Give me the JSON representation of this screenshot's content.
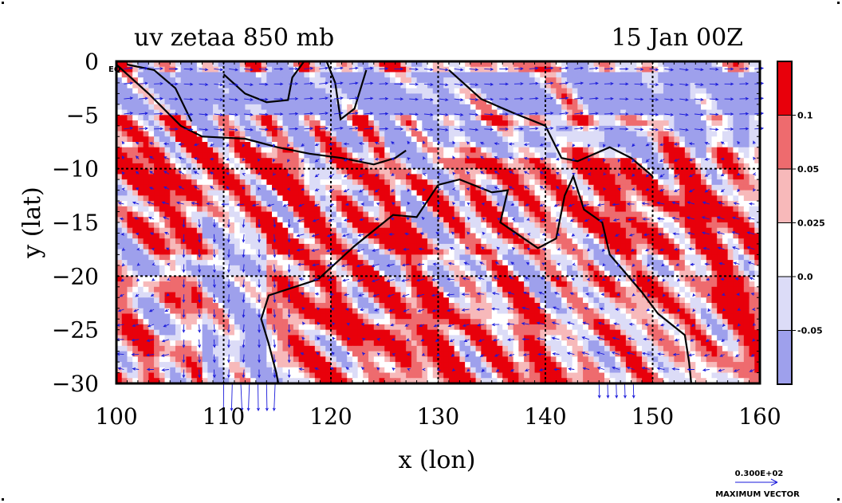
{
  "header": {
    "title_left": "uv zetaa 850 mb",
    "title_right": "15 Jan 00Z"
  },
  "corner_label": "EQ",
  "colorbar": {
    "labels": [
      "0.1",
      "0.05",
      "0.025",
      "0.0",
      "-0.05"
    ],
    "colors": [
      "#e8000b",
      "#ee6b6e",
      "#f7b9ba",
      "#ffffff",
      "#dcdcf7",
      "#9ea0ec"
    ]
  },
  "vector_key": {
    "value": "0.300E+02",
    "label": "MAXIMUM VECTOR"
  },
  "chart_data": {
    "type": "heatmap",
    "title": "uv zetaa 850 mb",
    "subtitle": "15 Jan 00Z",
    "xlabel": "x (lon)",
    "ylabel": "y (lat)",
    "xlim": [
      100,
      160
    ],
    "ylim": [
      -30,
      0
    ],
    "xticks": [
      100,
      110,
      120,
      130,
      140,
      150,
      160
    ],
    "yticks": [
      0,
      -5,
      -10,
      -15,
      -20,
      -25,
      -30
    ],
    "ytick_labels": [
      "0",
      "−5",
      "−10",
      "−15",
      "−20",
      "−25",
      "−30"
    ],
    "grid": true,
    "grid_lines_x": [
      110,
      120,
      130,
      140,
      150
    ],
    "grid_lines_y": [
      -10,
      -20
    ],
    "contour_levels": [
      -0.05,
      0.0,
      0.025,
      0.05,
      0.1
    ],
    "legend_position": "right",
    "coastline_color": "#000000",
    "vector_color": "#1a1adb"
  }
}
